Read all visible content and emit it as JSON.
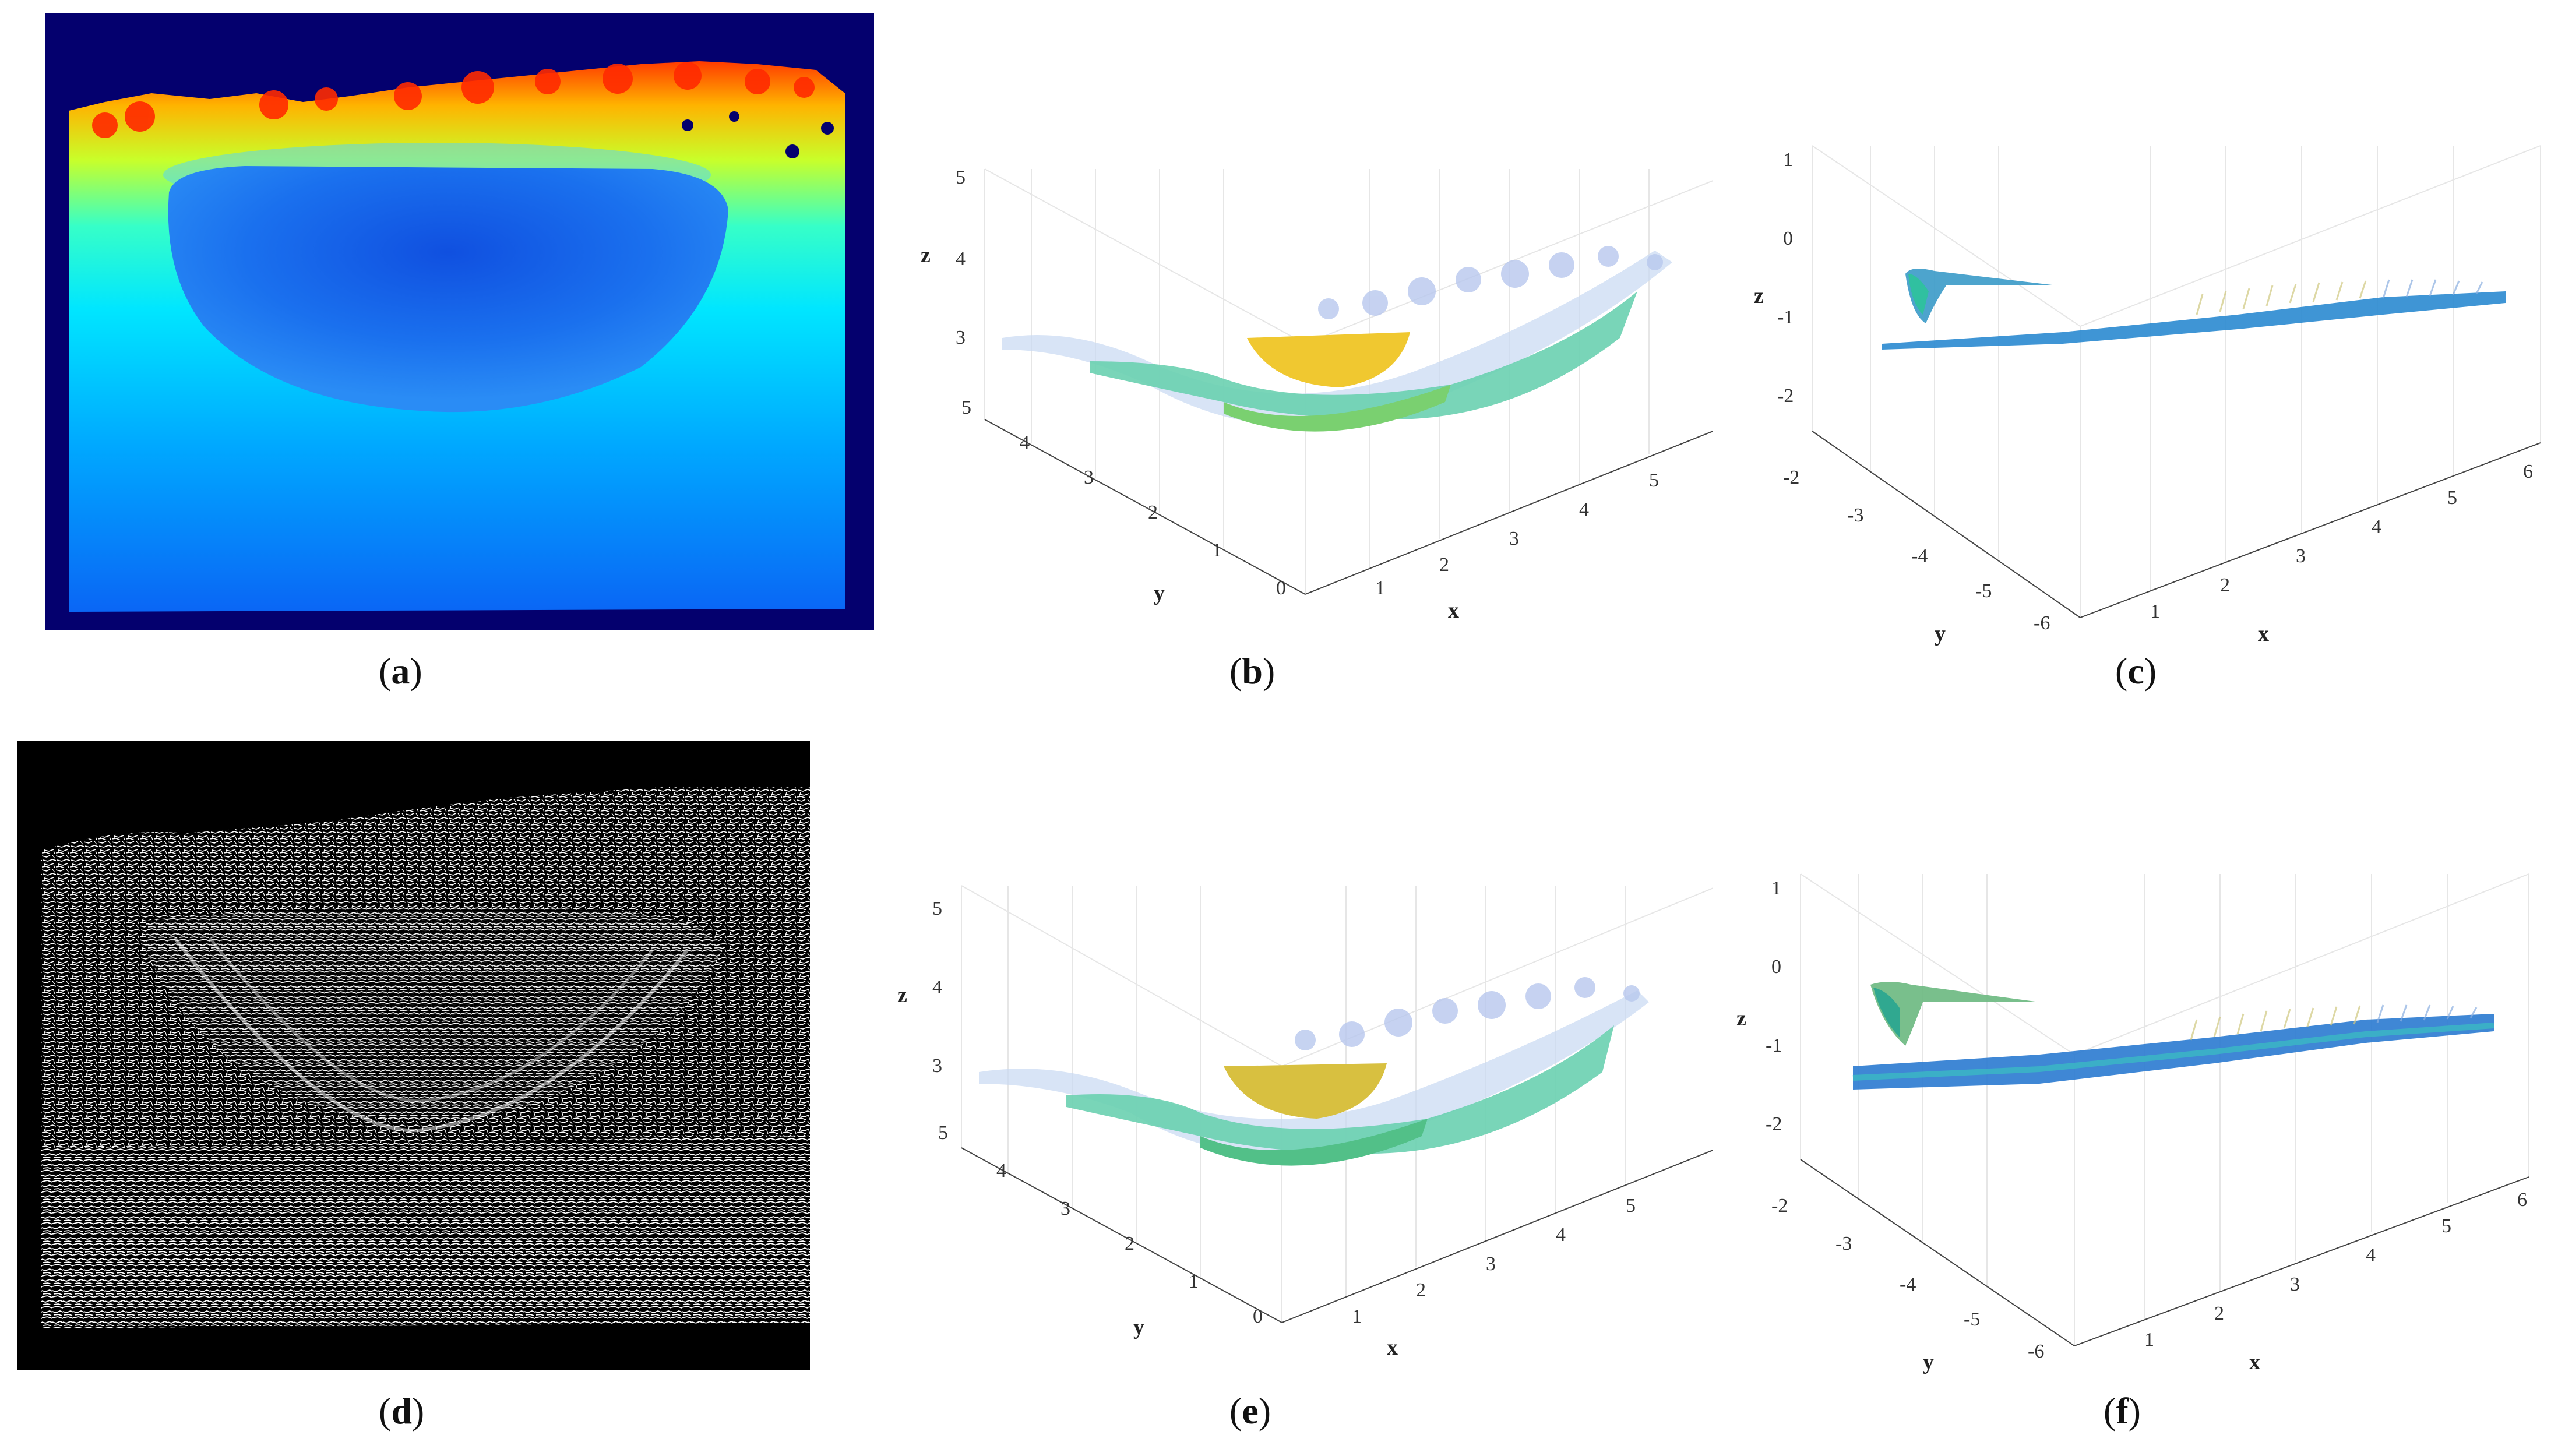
{
  "panels": {
    "a": {
      "caption": "a"
    },
    "b": {
      "caption": "b",
      "z_ticks": [
        "5",
        "4",
        "3"
      ],
      "y_ticks": [
        "5",
        "4",
        "3",
        "2",
        "1",
        "0"
      ],
      "x_ticks": [
        "1",
        "2",
        "3",
        "4",
        "5"
      ],
      "x_label": "x",
      "y_label": "y",
      "z_label": "z"
    },
    "c": {
      "caption": "c",
      "z_ticks": [
        "1",
        "0",
        "-1",
        "-2"
      ],
      "y_ticks": [
        "-2",
        "-3",
        "-4",
        "-5",
        "-6"
      ],
      "x_ticks": [
        "1",
        "2",
        "3",
        "4",
        "5",
        "6"
      ],
      "x_label": "x",
      "y_label": "y",
      "z_label": "z"
    },
    "d": {
      "caption": "d"
    },
    "e": {
      "caption": "e",
      "z_ticks": [
        "5",
        "4",
        "3"
      ],
      "y_ticks": [
        "5",
        "4",
        "3",
        "2",
        "1",
        "0"
      ],
      "x_ticks": [
        "1",
        "2",
        "3",
        "4",
        "5"
      ],
      "x_label": "x",
      "y_label": "y",
      "z_label": "z"
    },
    "f": {
      "caption": "f",
      "z_ticks": [
        "1",
        "0",
        "-1",
        "-2"
      ],
      "y_ticks": [
        "-2",
        "-3",
        "-4",
        "-5",
        "-6"
      ],
      "x_ticks": [
        "1",
        "2",
        "3",
        "4",
        "5",
        "6"
      ],
      "x_label": "x",
      "y_label": "y",
      "z_label": "z"
    }
  }
}
